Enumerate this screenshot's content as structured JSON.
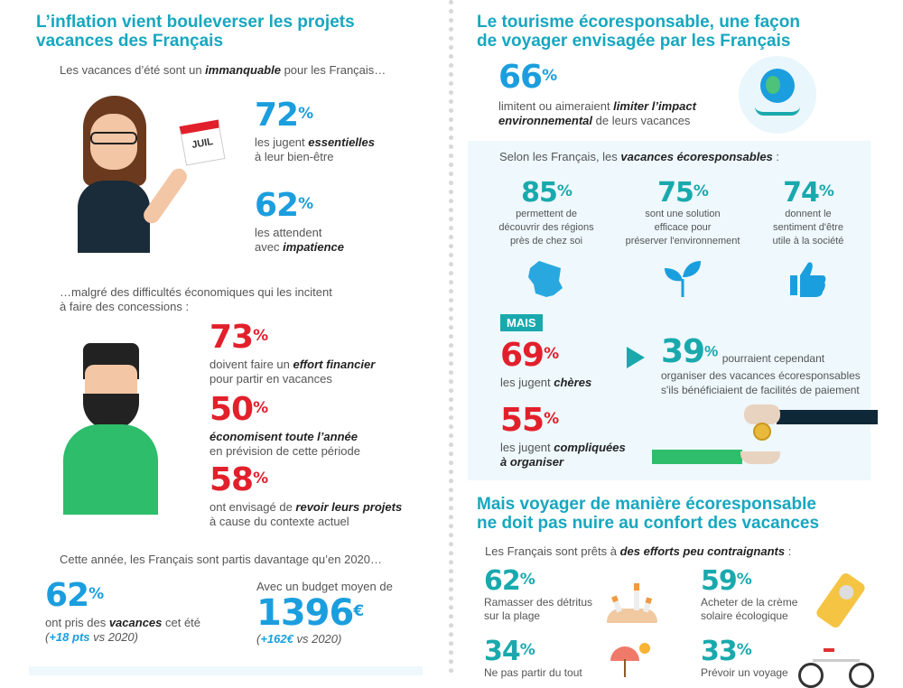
{
  "left": {
    "title_line1": "L’inflation vient bouleverser les projets",
    "title_line2": "vacances des Français",
    "intro_pre": "Les vacances d’été sont un ",
    "intro_bold": "immanquable",
    "intro_post": " pour les Français…",
    "calendar_label": "JUIL",
    "stat1": {
      "value": "72",
      "unit": "%",
      "pre": "les jugent ",
      "bold": "essentielles",
      "line2": "à leur bien-être"
    },
    "stat2": {
      "value": "62",
      "unit": "%",
      "line1": "les attendent",
      "pre2": "avec ",
      "bold": "impatience"
    },
    "intro2_line1": "…malgré des difficultés économiques qui les incitent",
    "intro2_line2": "à faire des concessions :",
    "stat3": {
      "value": "73",
      "unit": "%",
      "pre": "doivent faire un ",
      "bold": "effort financier",
      "line2": "pour partir en vacances"
    },
    "stat4": {
      "value": "50",
      "unit": "%",
      "bold": "économisent toute l’année",
      "line2": "en prévision de cette période"
    },
    "stat5": {
      "value": "58",
      "unit": "%",
      "pre": "ont envisagé de ",
      "bold": "revoir leurs projets",
      "line2": "à cause du contexte actuel"
    },
    "intro3": "Cette année, les Français sont partis davantage qu’en 2020…",
    "stat6": {
      "value": "62",
      "unit": "%",
      "pre": "ont pris des ",
      "bold": "vacances",
      "post": " cet été",
      "paren_open": "(",
      "delta": "+18 pts",
      "delta_post": " vs 2020)"
    },
    "budget": {
      "label": "Avec un budget moyen de",
      "value": "1396",
      "unit": "€",
      "paren_open": "(",
      "delta": "+162€",
      "delta_post": " vs 2020)"
    }
  },
  "right": {
    "title_line1": "Le tourisme écoresponsable, une façon",
    "title_line2": "de voyager envisagée par les Français",
    "stat_top": {
      "value": "66",
      "unit": "%",
      "pre": "limitent ou aimeraient ",
      "bold1": "limiter l’impact",
      "bold2": "environnemental",
      "post": " de leurs vacances"
    },
    "panel_intro_pre": "Selon les Français, les ",
    "panel_intro_bold": "vacances écoresponsables",
    "panel_intro_post": " :",
    "cols": [
      {
        "value": "85",
        "unit": "%",
        "lines": [
          "permettent de",
          "découvrir des régions",
          "près de chez soi"
        ],
        "icon": "france-map-icon"
      },
      {
        "value": "75",
        "unit": "%",
        "lines": [
          "sont une solution",
          "efficace pour",
          "préserver l'environnement"
        ],
        "icon": "plant-icon"
      },
      {
        "value": "74",
        "unit": "%",
        "lines": [
          "donnent le",
          "sentiment d'être",
          "utile à la société"
        ],
        "icon": "thumbs-up-icon"
      }
    ],
    "mais": "MAIS",
    "stat69": {
      "value": "69",
      "unit": "%",
      "pre": "les jugent ",
      "bold": "chères"
    },
    "stat55": {
      "value": "55",
      "unit": "%",
      "pre": "les jugent ",
      "bold": "compliquées",
      "bold2": "à organiser"
    },
    "stat39": {
      "value": "39",
      "unit": "%",
      "line1": "pourraient cependant",
      "line2": "organiser des vacances écoresponsables",
      "line3": "s'ils bénéficiaient de facilités de paiement"
    },
    "title2_line1": "Mais voyager de manière écoresponsable",
    "title2_line2": "ne doit pas nuire au confort des vacances",
    "efforts_pre": "Les Français sont prêts à ",
    "efforts_bold": "des efforts peu contraignants",
    "efforts_post": " :",
    "efforts": [
      {
        "value": "62",
        "unit": "%",
        "line1": "Ramasser des détritus",
        "line2": "sur la plage"
      },
      {
        "value": "59",
        "unit": "%",
        "line1": "Acheter de la crème",
        "line2": "solaire écologique"
      },
      {
        "value": "34",
        "unit": "%",
        "line1": "Ne pas partir du tout"
      },
      {
        "value": "33",
        "unit": "%",
        "line1": "Prévoir un voyage"
      }
    ]
  },
  "colors": {
    "title": "#17a7bf",
    "blue": "#1b9ede",
    "red": "#e2202b",
    "teal": "#19a9ad",
    "panel": "#eef8fd"
  }
}
